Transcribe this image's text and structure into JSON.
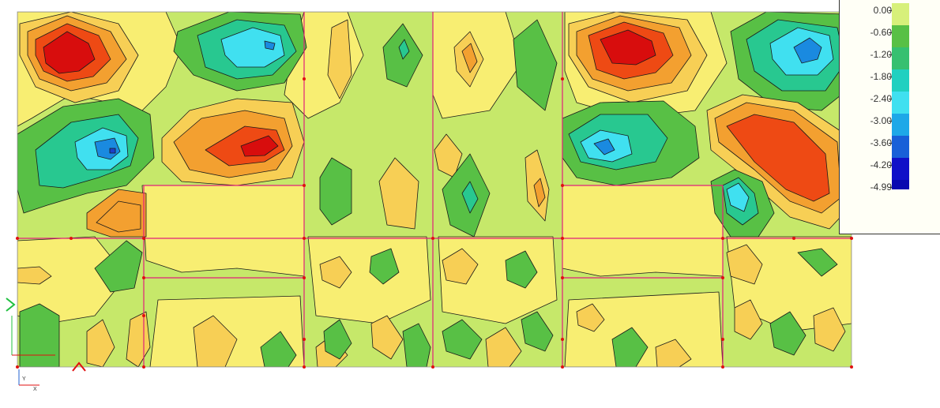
{
  "chart_data": {
    "type": "heatmap",
    "title": "",
    "xlabel": "",
    "ylabel": "",
    "legend": {
      "placement": "top-right",
      "levels": [
        "0.00",
        "-0.60",
        "-1.20",
        "-1.80",
        "-2.40",
        "-3.00",
        "-3.60",
        "-4.20",
        "-4.99"
      ],
      "band_colors": [
        "#d7f07a",
        "#58c045",
        "#36c070",
        "#20d0c0",
        "#40e0f0",
        "#1ea8e8",
        "#1860d8",
        "#1010c8",
        "#0808b0"
      ]
    },
    "contour_palette": {
      "red": "#d80d0d",
      "orange_red": "#ee4a14",
      "orange": "#f3a030",
      "light_orange": "#f7cf55",
      "yellow": "#f8ee72",
      "yellow_green": "#c6e86a",
      "green": "#58c045",
      "teal": "#28c890",
      "cyan": "#40e0f0",
      "blue": "#1a8ae0"
    },
    "axis_triad_labels": [
      "Y",
      "X"
    ]
  }
}
